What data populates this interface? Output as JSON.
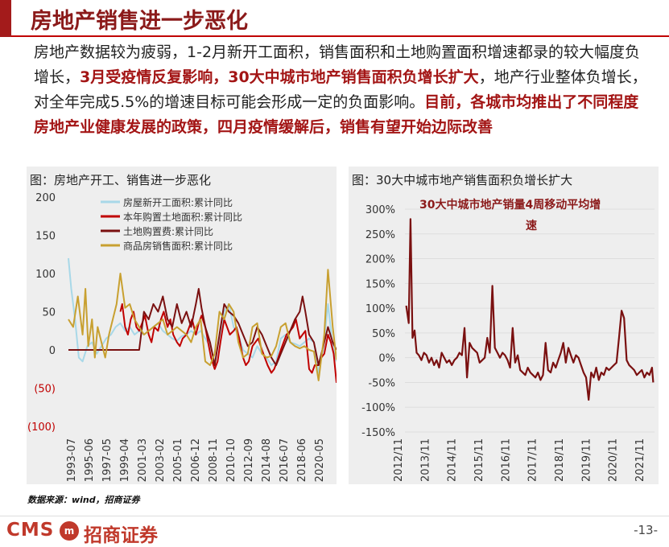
{
  "page": {
    "title": "房地产销售进一步恶化",
    "paragraph": [
      {
        "text": "房地产数据较为疲弱，1-2月新开工面积，销售面积和土地购置面积增速都录的较大幅度负增长，",
        "hl": false
      },
      {
        "text": "3月受疫情反复影响，30大中城市地产销售面积负增长扩大",
        "hl": true
      },
      {
        "text": "，地产行业整体负增长，对全年完成5.5%的增速目标可能会形成一定的负面影响。",
        "hl": false
      },
      {
        "text": "目前，各城市均推出了不同程度房地产业健康发展的政策，四月疫情缓解后，销售有望开始边际改善",
        "hl": true
      }
    ],
    "source": "数据来源：wind，招商证券",
    "logo_text": "CMS",
    "logo_mark": "m",
    "logo_cn": "招商证券",
    "page_number": "-13-"
  },
  "colors": {
    "brand": "#a31b1b",
    "highlight": "#a31515",
    "panel_bg": "#eeeeee"
  },
  "chart_data": [
    {
      "type": "line",
      "title": "图：房地产开工、销售进一步恶化",
      "ylim": [
        -100,
        200
      ],
      "y_ticks": [
        200,
        150,
        100,
        50,
        0,
        -50,
        -100
      ],
      "y_tick_labels": [
        "200",
        "150",
        "100",
        "50",
        "0",
        "(50)",
        "(100)"
      ],
      "x_range": [
        1993.5,
        2021.9
      ],
      "x_tick_labels": [
        "1993-07",
        "1995-06",
        "1997-05",
        "1999-04",
        "2001-03",
        "2003-02",
        "2005-01",
        "2006-12",
        "2008-11",
        "2010-10",
        "2012-09",
        "2014-08",
        "2016-07",
        "2018-06",
        "2020-05"
      ],
      "legend_position": "top",
      "series": [
        {
          "name": "房屋新开工面积:累计同比",
          "color": "#a8d8e8",
          "x": [
            1993.5,
            1993.8,
            1994.2,
            1994.6,
            1995.0,
            1995.5,
            1996.0,
            1996.5,
            1997.0,
            1997.5,
            1998.0,
            1998.5,
            1999.0,
            1999.5,
            2000.0,
            2000.5,
            2001.0,
            2001.5,
            2002.0,
            2002.5,
            2003.0,
            2003.5,
            2004.0,
            2004.5,
            2005.0,
            2005.5,
            2006.0,
            2006.5,
            2007.0,
            2007.5,
            2008.0,
            2008.5,
            2009.0,
            2009.5,
            2010.0,
            2010.5,
            2011.0,
            2011.5,
            2012.0,
            2012.5,
            2013.0,
            2013.5,
            2014.0,
            2014.5,
            2015.0,
            2015.5,
            2016.0,
            2016.5,
            2017.0,
            2017.5,
            2018.0,
            2018.5,
            2019.0,
            2019.5,
            2020.0,
            2020.5,
            2021.0,
            2021.5,
            2021.9
          ],
          "y": [
            120,
            80,
            40,
            -10,
            -15,
            5,
            10,
            -5,
            5,
            15,
            20,
            30,
            35,
            25,
            30,
            20,
            25,
            20,
            25,
            30,
            35,
            25,
            20,
            15,
            12,
            18,
            20,
            25,
            20,
            25,
            15,
            5,
            -15,
            15,
            50,
            60,
            30,
            20,
            0,
            -5,
            -10,
            5,
            -5,
            -10,
            -20,
            -15,
            15,
            20,
            10,
            8,
            5,
            10,
            15,
            10,
            -30,
            2,
            60,
            5,
            -15
          ]
        },
        {
          "name": "本年购置土地面积:累计同比",
          "color": "#c00000",
          "x": [
            1999.0,
            1999.2,
            1999.5,
            1999.8,
            2000.1,
            2000.4,
            2000.7,
            2001.0,
            2001.3,
            2001.6,
            2002.0,
            2002.3,
            2002.6,
            2003.0,
            2003.3,
            2003.6,
            2004.0,
            2004.3,
            2004.6,
            2005.0,
            2005.3,
            2005.6,
            2006.0,
            2006.3,
            2006.6,
            2007.0,
            2007.3,
            2007.6,
            2008.0,
            2008.3,
            2008.6,
            2009.0,
            2009.3,
            2009.6,
            2010.0,
            2010.3,
            2010.6,
            2011.0,
            2011.3,
            2011.6,
            2012.0,
            2012.3,
            2012.6,
            2013.0,
            2013.3,
            2013.6,
            2014.0,
            2014.3,
            2014.6,
            2015.0,
            2015.3,
            2015.6,
            2016.0,
            2016.3,
            2016.6,
            2017.0,
            2017.3,
            2017.6,
            2018.0,
            2018.3,
            2018.6,
            2019.0,
            2019.3,
            2019.6,
            2020.0,
            2020.3,
            2020.6,
            2021.0,
            2021.3,
            2021.6,
            2021.9
          ],
          "y": [
            50,
            60,
            30,
            20,
            40,
            50,
            30,
            25,
            35,
            45,
            20,
            10,
            30,
            25,
            40,
            50,
            30,
            40,
            20,
            10,
            5,
            15,
            20,
            30,
            40,
            20,
            35,
            45,
            30,
            10,
            -10,
            -25,
            -15,
            10,
            40,
            30,
            20,
            25,
            30,
            15,
            -10,
            -20,
            -15,
            5,
            10,
            15,
            0,
            -10,
            -20,
            -30,
            -25,
            -15,
            0,
            10,
            20,
            25,
            30,
            40,
            15,
            20,
            25,
            -25,
            -30,
            -20,
            -20,
            -10,
            -5,
            20,
            10,
            -5,
            -43
          ]
        },
        {
          "name": "土地购置费:累计同比",
          "color": "#7a1010",
          "x": [
            1993.5,
            1995.0,
            1998.0,
            2001.0,
            2001.5,
            2002.0,
            2002.5,
            2003.0,
            2003.5,
            2004.0,
            2004.5,
            2005.0,
            2005.5,
            2006.0,
            2006.5,
            2007.0,
            2007.3,
            2007.6,
            2008.0,
            2008.5,
            2009.0,
            2009.5,
            2010.0,
            2010.5,
            2011.0,
            2011.5,
            2012.0,
            2012.5,
            2013.0,
            2013.5,
            2014.0,
            2014.5,
            2015.0,
            2015.5,
            2016.0,
            2016.5,
            2017.0,
            2017.5,
            2018.0,
            2018.3,
            2018.6,
            2019.0,
            2019.5,
            2020.0,
            2020.5,
            2021.0,
            2021.5,
            2021.9
          ],
          "y": [
            0,
            0,
            0,
            0,
            50,
            40,
            60,
            50,
            70,
            40,
            30,
            60,
            35,
            50,
            30,
            60,
            80,
            55,
            30,
            10,
            -20,
            20,
            60,
            50,
            45,
            35,
            20,
            5,
            10,
            30,
            20,
            5,
            -10,
            -20,
            -5,
            10,
            25,
            40,
            50,
            70,
            50,
            20,
            10,
            -20,
            5,
            30,
            10,
            0
          ]
        },
        {
          "name": "商品房销售面积:累计同比",
          "color": "#c8a030",
          "x": [
            1993.5,
            1994.0,
            1994.5,
            1995.0,
            1995.3,
            1995.6,
            1996.0,
            1996.3,
            1996.6,
            1997.0,
            1997.4,
            1997.8,
            1998.2,
            1998.6,
            1999.0,
            1999.5,
            2000.0,
            2000.5,
            2001.0,
            2001.5,
            2002.0,
            2002.5,
            2003.0,
            2003.5,
            2004.0,
            2004.5,
            2005.0,
            2005.5,
            2006.0,
            2006.5,
            2007.0,
            2007.5,
            2008.0,
            2008.5,
            2009.0,
            2009.5,
            2010.0,
            2010.5,
            2011.0,
            2011.5,
            2012.0,
            2012.5,
            2013.0,
            2013.5,
            2014.0,
            2014.5,
            2015.0,
            2015.5,
            2016.0,
            2016.5,
            2017.0,
            2017.5,
            2018.0,
            2018.5,
            2019.0,
            2019.5,
            2020.0,
            2020.3,
            2020.6,
            2021.0,
            2021.5,
            2021.9
          ],
          "y": [
            40,
            30,
            70,
            20,
            80,
            5,
            40,
            -10,
            30,
            10,
            -10,
            20,
            40,
            60,
            100,
            55,
            60,
            40,
            30,
            20,
            25,
            30,
            35,
            40,
            20,
            25,
            30,
            25,
            20,
            10,
            30,
            40,
            -15,
            -20,
            -5,
            50,
            40,
            60,
            50,
            10,
            -10,
            -5,
            30,
            35,
            -5,
            -10,
            -8,
            5,
            30,
            35,
            10,
            5,
            2,
            5,
            0,
            -2,
            -40,
            -10,
            20,
            105,
            30,
            -13
          ]
        }
      ]
    },
    {
      "type": "line",
      "title": "图：30大中城市地产销售面积负增长扩大",
      "annotation": "30大中城市地产销量4周移动平均增速",
      "ylim": [
        -150,
        300
      ],
      "y_ticks": [
        300,
        250,
        200,
        150,
        100,
        50,
        0,
        -50,
        -100,
        -150
      ],
      "y_tick_labels": [
        "300%",
        "250%",
        "200%",
        "150%",
        "100%",
        "50%",
        "0%",
        "-50%",
        "-100%",
        "-150%"
      ],
      "x_range": [
        2012.4,
        2022.25
      ],
      "x_tick_labels": [
        "2012/11",
        "2013/11",
        "2014/11",
        "2015/11",
        "2016/11",
        "2017/11",
        "2018/11",
        "2019/11",
        "2020/11",
        "2021/11"
      ],
      "series": [
        {
          "name": "",
          "color": "#7a1010",
          "x": [
            2012.45,
            2012.55,
            2012.62,
            2012.7,
            2012.78,
            2012.86,
            2012.95,
            2013.05,
            2013.15,
            2013.25,
            2013.35,
            2013.45,
            2013.55,
            2013.65,
            2013.75,
            2013.85,
            2013.95,
            2014.05,
            2014.15,
            2014.25,
            2014.35,
            2014.45,
            2014.55,
            2014.65,
            2014.75,
            2014.85,
            2014.95,
            2015.05,
            2015.15,
            2015.25,
            2015.35,
            2015.45,
            2015.55,
            2015.65,
            2015.75,
            2015.85,
            2015.95,
            2016.05,
            2016.15,
            2016.25,
            2016.35,
            2016.45,
            2016.55,
            2016.65,
            2016.75,
            2016.85,
            2016.95,
            2017.05,
            2017.15,
            2017.25,
            2017.35,
            2017.45,
            2017.55,
            2017.65,
            2017.75,
            2017.85,
            2017.95,
            2018.05,
            2018.15,
            2018.25,
            2018.35,
            2018.45,
            2018.55,
            2018.65,
            2018.75,
            2018.85,
            2018.95,
            2019.05,
            2019.15,
            2019.25,
            2019.35,
            2019.45,
            2019.55,
            2019.65,
            2019.75,
            2019.85,
            2019.95,
            2020.05,
            2020.15,
            2020.25,
            2020.35,
            2020.45,
            2020.55,
            2020.65,
            2020.75,
            2020.85,
            2020.95,
            2021.05,
            2021.15,
            2021.25,
            2021.35,
            2021.45,
            2021.55,
            2021.65,
            2021.75,
            2021.85,
            2021.95,
            2022.05,
            2022.15,
            2022.2
          ],
          "y": [
            105,
            70,
            280,
            40,
            55,
            10,
            5,
            -5,
            10,
            5,
            -10,
            0,
            -15,
            -5,
            -20,
            10,
            0,
            -10,
            -5,
            -15,
            -5,
            0,
            10,
            5,
            60,
            -40,
            30,
            20,
            15,
            10,
            -10,
            -5,
            0,
            40,
            10,
            145,
            20,
            10,
            0,
            10,
            5,
            -5,
            -20,
            60,
            -10,
            5,
            -25,
            -30,
            -35,
            -20,
            -30,
            -35,
            -40,
            -30,
            -45,
            -35,
            30,
            -25,
            -30,
            -10,
            -20,
            -5,
            10,
            30,
            -10,
            20,
            5,
            -10,
            5,
            0,
            -15,
            -30,
            -40,
            -85,
            -30,
            -40,
            -20,
            -45,
            -30,
            -35,
            -20,
            -25,
            -20,
            -15,
            -10,
            40,
            95,
            80,
            -5,
            -15,
            -20,
            -25,
            -35,
            -30,
            -25,
            -40,
            -30,
            -35,
            -20,
            -50
          ]
        }
      ]
    }
  ]
}
